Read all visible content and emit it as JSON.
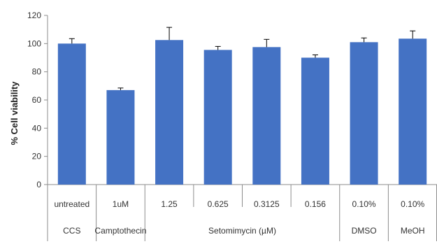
{
  "chart_data": {
    "type": "bar",
    "title": "",
    "xlabel": "",
    "ylabel": "% Cell viability",
    "ylim": [
      0,
      120
    ],
    "yticks": [
      0,
      20,
      40,
      60,
      80,
      100,
      120
    ],
    "grid": false,
    "legend": "none",
    "bar_color": "#4472C4",
    "categories": [
      "untreated",
      "1uM",
      "1.25",
      "0.625",
      "0.3125",
      "0.156",
      "0.10%",
      "0.10%"
    ],
    "values": [
      100,
      67,
      102.5,
      95.5,
      97.5,
      90,
      101,
      103.5
    ],
    "error_plus": [
      3.5,
      1.5,
      9,
      2.5,
      5.5,
      2,
      3,
      5.5
    ],
    "groups": [
      {
        "label": "CCS",
        "start": 0,
        "end": 0
      },
      {
        "label": "Camptothecin",
        "start": 1,
        "end": 1
      },
      {
        "label": "Setomimycin (µM)",
        "start": 2,
        "end": 5
      },
      {
        "label": "DMSO",
        "start": 6,
        "end": 6
      },
      {
        "label": "MeOH",
        "start": 7,
        "end": 7
      }
    ]
  }
}
